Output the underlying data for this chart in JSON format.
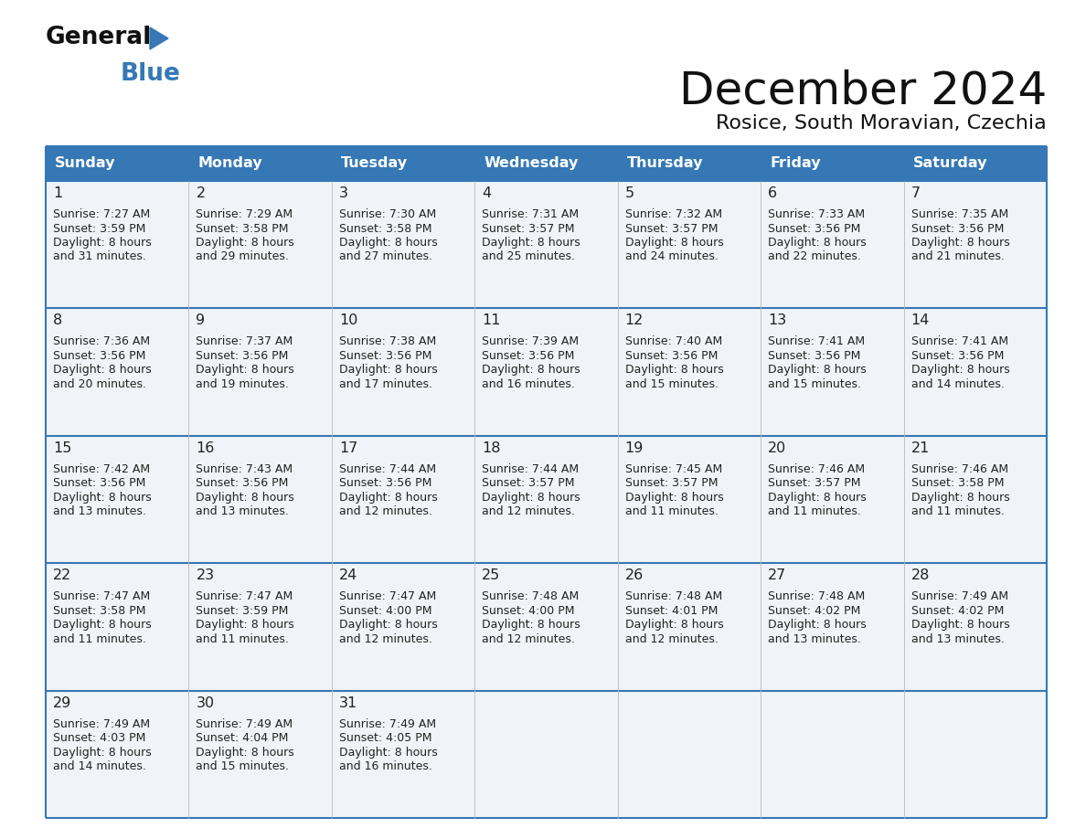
{
  "title": "December 2024",
  "subtitle": "Rosice, South Moravian, Czechia",
  "header_color": "#3578b5",
  "header_text_color": "#ffffff",
  "bg_color": "#ffffff",
  "cell_bg": "#f0f4f8",
  "border_color": "#3578b5",
  "text_color": "#222222",
  "day_names": [
    "Sunday",
    "Monday",
    "Tuesday",
    "Wednesday",
    "Thursday",
    "Friday",
    "Saturday"
  ],
  "days": [
    {
      "day": 1,
      "col": 0,
      "row": 0,
      "sunrise": "7:27 AM",
      "sunset": "3:59 PM",
      "dl_min": "31"
    },
    {
      "day": 2,
      "col": 1,
      "row": 0,
      "sunrise": "7:29 AM",
      "sunset": "3:58 PM",
      "dl_min": "29"
    },
    {
      "day": 3,
      "col": 2,
      "row": 0,
      "sunrise": "7:30 AM",
      "sunset": "3:58 PM",
      "dl_min": "27"
    },
    {
      "day": 4,
      "col": 3,
      "row": 0,
      "sunrise": "7:31 AM",
      "sunset": "3:57 PM",
      "dl_min": "25"
    },
    {
      "day": 5,
      "col": 4,
      "row": 0,
      "sunrise": "7:32 AM",
      "sunset": "3:57 PM",
      "dl_min": "24"
    },
    {
      "day": 6,
      "col": 5,
      "row": 0,
      "sunrise": "7:33 AM",
      "sunset": "3:56 PM",
      "dl_min": "22"
    },
    {
      "day": 7,
      "col": 6,
      "row": 0,
      "sunrise": "7:35 AM",
      "sunset": "3:56 PM",
      "dl_min": "21"
    },
    {
      "day": 8,
      "col": 0,
      "row": 1,
      "sunrise": "7:36 AM",
      "sunset": "3:56 PM",
      "dl_min": "20"
    },
    {
      "day": 9,
      "col": 1,
      "row": 1,
      "sunrise": "7:37 AM",
      "sunset": "3:56 PM",
      "dl_min": "19"
    },
    {
      "day": 10,
      "col": 2,
      "row": 1,
      "sunrise": "7:38 AM",
      "sunset": "3:56 PM",
      "dl_min": "17"
    },
    {
      "day": 11,
      "col": 3,
      "row": 1,
      "sunrise": "7:39 AM",
      "sunset": "3:56 PM",
      "dl_min": "16"
    },
    {
      "day": 12,
      "col": 4,
      "row": 1,
      "sunrise": "7:40 AM",
      "sunset": "3:56 PM",
      "dl_min": "15"
    },
    {
      "day": 13,
      "col": 5,
      "row": 1,
      "sunrise": "7:41 AM",
      "sunset": "3:56 PM",
      "dl_min": "15"
    },
    {
      "day": 14,
      "col": 6,
      "row": 1,
      "sunrise": "7:41 AM",
      "sunset": "3:56 PM",
      "dl_min": "14"
    },
    {
      "day": 15,
      "col": 0,
      "row": 2,
      "sunrise": "7:42 AM",
      "sunset": "3:56 PM",
      "dl_min": "13"
    },
    {
      "day": 16,
      "col": 1,
      "row": 2,
      "sunrise": "7:43 AM",
      "sunset": "3:56 PM",
      "dl_min": "13"
    },
    {
      "day": 17,
      "col": 2,
      "row": 2,
      "sunrise": "7:44 AM",
      "sunset": "3:56 PM",
      "dl_min": "12"
    },
    {
      "day": 18,
      "col": 3,
      "row": 2,
      "sunrise": "7:44 AM",
      "sunset": "3:57 PM",
      "dl_min": "12"
    },
    {
      "day": 19,
      "col": 4,
      "row": 2,
      "sunrise": "7:45 AM",
      "sunset": "3:57 PM",
      "dl_min": "11"
    },
    {
      "day": 20,
      "col": 5,
      "row": 2,
      "sunrise": "7:46 AM",
      "sunset": "3:57 PM",
      "dl_min": "11"
    },
    {
      "day": 21,
      "col": 6,
      "row": 2,
      "sunrise": "7:46 AM",
      "sunset": "3:58 PM",
      "dl_min": "11"
    },
    {
      "day": 22,
      "col": 0,
      "row": 3,
      "sunrise": "7:47 AM",
      "sunset": "3:58 PM",
      "dl_min": "11"
    },
    {
      "day": 23,
      "col": 1,
      "row": 3,
      "sunrise": "7:47 AM",
      "sunset": "3:59 PM",
      "dl_min": "11"
    },
    {
      "day": 24,
      "col": 2,
      "row": 3,
      "sunrise": "7:47 AM",
      "sunset": "4:00 PM",
      "dl_min": "12"
    },
    {
      "day": 25,
      "col": 3,
      "row": 3,
      "sunrise": "7:48 AM",
      "sunset": "4:00 PM",
      "dl_min": "12"
    },
    {
      "day": 26,
      "col": 4,
      "row": 3,
      "sunrise": "7:48 AM",
      "sunset": "4:01 PM",
      "dl_min": "12"
    },
    {
      "day": 27,
      "col": 5,
      "row": 3,
      "sunrise": "7:48 AM",
      "sunset": "4:02 PM",
      "dl_min": "13"
    },
    {
      "day": 28,
      "col": 6,
      "row": 3,
      "sunrise": "7:49 AM",
      "sunset": "4:02 PM",
      "dl_min": "13"
    },
    {
      "day": 29,
      "col": 0,
      "row": 4,
      "sunrise": "7:49 AM",
      "sunset": "4:03 PM",
      "dl_min": "14"
    },
    {
      "day": 30,
      "col": 1,
      "row": 4,
      "sunrise": "7:49 AM",
      "sunset": "4:04 PM",
      "dl_min": "15"
    },
    {
      "day": 31,
      "col": 2,
      "row": 4,
      "sunrise": "7:49 AM",
      "sunset": "4:05 PM",
      "dl_min": "16"
    }
  ]
}
